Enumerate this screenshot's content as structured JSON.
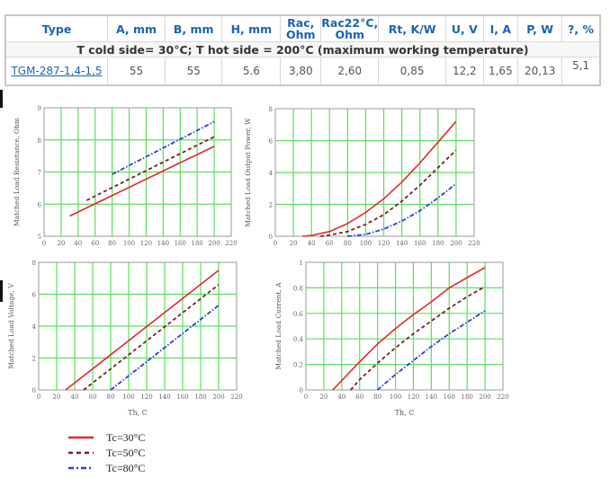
{
  "table": {
    "headers": [
      "Type",
      "A, mm",
      "B, mm",
      "H, mm",
      "Rac, Ohm",
      "Rac22°C, Ohm",
      "Rt, K/W",
      "U, V",
      "I, A",
      "P, W",
      "?, %"
    ],
    "condition": "T cold side= 30°C; T hot side = 200°C (maximum working temperature)",
    "row": {
      "type": "TGM-287-1,4-1,5",
      "values": [
        "55",
        "55",
        "5.6",
        "3,80",
        "2,60",
        "0,85",
        "12,2",
        "1,65",
        "20,13",
        "5,1"
      ]
    }
  },
  "colors": {
    "tc30": "#e8262a",
    "tc50": "#7a1e1e",
    "tc80": "#2a3fd6",
    "grid": "#5be05b"
  },
  "chart_data": [
    {
      "type": "line",
      "ylabel": "Matched Load Resistance, Ohm",
      "xlabel": "",
      "xlim": [
        0,
        220
      ],
      "ylim": [
        5,
        9
      ],
      "xticks": [
        0,
        20,
        40,
        60,
        80,
        100,
        120,
        140,
        160,
        180,
        200,
        220
      ],
      "yticks": [
        5,
        6,
        7,
        8,
        9
      ],
      "grid": true,
      "series": [
        {
          "name": "Tc=30°C",
          "points": [
            [
              30,
              5.63
            ],
            [
              200,
              7.8
            ]
          ]
        },
        {
          "name": "Tc=50°C",
          "points": [
            [
              50,
              6.12
            ],
            [
              200,
              8.1
            ]
          ]
        },
        {
          "name": "Tc=80°C",
          "points": [
            [
              80,
              6.93
            ],
            [
              200,
              8.57
            ]
          ]
        }
      ]
    },
    {
      "type": "line",
      "ylabel": "Matched Load Output Power, W",
      "xlabel": "",
      "xlim": [
        0,
        220
      ],
      "ylim": [
        0,
        8
      ],
      "xticks": [
        0,
        20,
        40,
        60,
        80,
        100,
        120,
        140,
        160,
        180,
        200,
        220
      ],
      "yticks": [
        0,
        2,
        4,
        6,
        8
      ],
      "grid": true,
      "series": [
        {
          "name": "Tc=30°C",
          "points": [
            [
              30,
              0
            ],
            [
              40,
              0.05
            ],
            [
              60,
              0.3
            ],
            [
              80,
              0.8
            ],
            [
              100,
              1.5
            ],
            [
              120,
              2.35
            ],
            [
              140,
              3.4
            ],
            [
              160,
              4.6
            ],
            [
              180,
              5.9
            ],
            [
              200,
              7.2
            ]
          ]
        },
        {
          "name": "Tc=50°C",
          "points": [
            [
              50,
              0
            ],
            [
              60,
              0.08
            ],
            [
              80,
              0.3
            ],
            [
              100,
              0.75
            ],
            [
              120,
              1.35
            ],
            [
              140,
              2.2
            ],
            [
              160,
              3.2
            ],
            [
              180,
              4.3
            ],
            [
              200,
              5.4
            ]
          ]
        },
        {
          "name": "Tc=80°C",
          "points": [
            [
              80,
              0
            ],
            [
              100,
              0.12
            ],
            [
              120,
              0.45
            ],
            [
              140,
              0.95
            ],
            [
              160,
              1.6
            ],
            [
              180,
              2.4
            ],
            [
              200,
              3.3
            ]
          ]
        }
      ]
    },
    {
      "type": "line",
      "ylabel": "Matched Load Voltage, V",
      "xlabel": "Th, C",
      "xlim": [
        0,
        220
      ],
      "ylim": [
        0,
        8
      ],
      "xticks": [
        0,
        20,
        40,
        60,
        80,
        100,
        120,
        140,
        160,
        180,
        200,
        220
      ],
      "yticks": [
        0,
        2,
        4,
        6,
        8
      ],
      "grid": true,
      "series": [
        {
          "name": "Tc=30°C",
          "points": [
            [
              30,
              0
            ],
            [
              200,
              7.5
            ]
          ]
        },
        {
          "name": "Tc=50°C",
          "points": [
            [
              50,
              0
            ],
            [
              200,
              6.6
            ]
          ]
        },
        {
          "name": "Tc=80°C",
          "points": [
            [
              80,
              0
            ],
            [
              200,
              5.3
            ]
          ]
        }
      ]
    },
    {
      "type": "line",
      "ylabel": "Matched Load Current, A",
      "xlabel": "Th, C",
      "xlim": [
        0,
        220
      ],
      "ylim": [
        0,
        1
      ],
      "xticks": [
        0,
        20,
        40,
        60,
        80,
        100,
        120,
        140,
        160,
        180,
        200,
        220
      ],
      "yticks": [
        0,
        0.2,
        0.4,
        0.6,
        0.8,
        1
      ],
      "grid": true,
      "series": [
        {
          "name": "Tc=30°C",
          "points": [
            [
              30,
              0
            ],
            [
              60,
              0.22
            ],
            [
              80,
              0.36
            ],
            [
              100,
              0.48
            ],
            [
              120,
              0.59
            ],
            [
              140,
              0.69
            ],
            [
              160,
              0.8
            ],
            [
              180,
              0.88
            ],
            [
              200,
              0.96
            ]
          ]
        },
        {
          "name": "Tc=50°C",
          "points": [
            [
              50,
              0
            ],
            [
              60,
              0.08
            ],
            [
              80,
              0.21
            ],
            [
              100,
              0.33
            ],
            [
              120,
              0.44
            ],
            [
              140,
              0.54
            ],
            [
              160,
              0.64
            ],
            [
              180,
              0.73
            ],
            [
              200,
              0.81
            ]
          ]
        },
        {
          "name": "Tc=80°C",
          "points": [
            [
              80,
              0
            ],
            [
              100,
              0.12
            ],
            [
              120,
              0.23
            ],
            [
              140,
              0.34
            ],
            [
              160,
              0.44
            ],
            [
              180,
              0.53
            ],
            [
              200,
              0.62
            ]
          ]
        }
      ]
    }
  ],
  "legend": [
    "Tc=30°C",
    "Tc=50°C",
    "Tc=80°C"
  ]
}
